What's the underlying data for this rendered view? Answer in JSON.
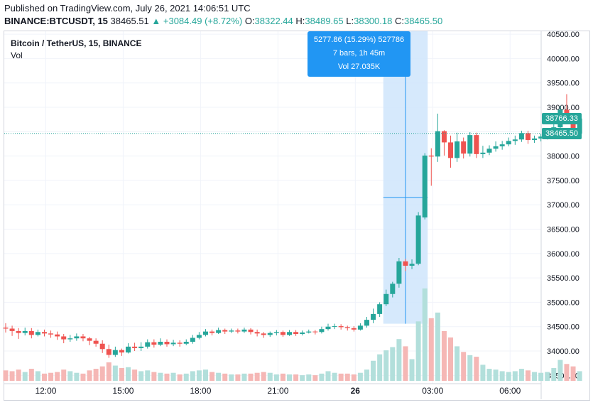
{
  "header": {
    "published": "Published on TradingView.com, July 26, 2021 14:06:51 UTC",
    "symbol": "BINANCE:BTCUSDT, 15",
    "last": "38465.51",
    "change": "▲ +3084.49 (+8.72%)",
    "o_label": "O:",
    "o_value": "38322.44",
    "h_label": "H:",
    "h_value": "38489.65",
    "l_label": "L:",
    "l_value": "38300.18",
    "c_label": "C:",
    "c_value": "38465.50"
  },
  "legend": {
    "title": "Bitcoin / TetherUS, 15, BINANCE",
    "vol_label": "Vol"
  },
  "measure": {
    "line1": "5277.86 (15.29%) 527786",
    "line2": "7 bars, 1h 45m",
    "line3": "Vol 27.035K"
  },
  "price_tags": {
    "current": "38465.50",
    "prev": "38766.33"
  },
  "colors": {
    "up": "#26a69a",
    "down": "#ef5350",
    "up_vol": "#b2dfdb",
    "down_vol": "#f5b7b5",
    "measure": "#2196f3",
    "measure_fill": "#cfe5fb",
    "grid": "#f0f3fa",
    "price_line": "#26a69a"
  },
  "chart_data": {
    "type": "candlestick",
    "title": "Bitcoin / TetherUS, 15, BINANCE",
    "y_ticks": [
      "40500.00",
      "40000.00",
      "39500.00",
      "39000.00",
      "38500.00",
      "38000.00",
      "37500.00",
      "37000.00",
      "36500.00",
      "36000.00",
      "35500.00",
      "35000.00",
      "34500.00",
      "34000.00",
      "33500.00"
    ],
    "x_ticks": [
      "12:00",
      "15:00",
      "18:00",
      "21:00",
      "26",
      "03:00",
      "06:00"
    ],
    "ylim": [
      33330,
      40560
    ],
    "grid": true,
    "candles": [
      [
        34480,
        34460,
        34380,
        34570,
        130
      ],
      [
        34460,
        34410,
        34310,
        34520,
        120
      ],
      [
        34410,
        34370,
        34250,
        34470,
        140
      ],
      [
        34370,
        34410,
        34320,
        34480,
        110
      ],
      [
        34410,
        34330,
        34260,
        34470,
        150
      ],
      [
        34330,
        34390,
        34300,
        34440,
        120
      ],
      [
        34390,
        34360,
        34300,
        34440,
        90
      ],
      [
        34360,
        34340,
        34270,
        34420,
        100
      ],
      [
        34340,
        34300,
        34230,
        34400,
        110
      ],
      [
        34300,
        34240,
        34160,
        34350,
        140
      ],
      [
        34240,
        34260,
        34190,
        34330,
        120
      ],
      [
        34260,
        34300,
        34210,
        34360,
        100
      ],
      [
        34300,
        34260,
        34200,
        34350,
        90
      ],
      [
        34260,
        34210,
        34120,
        34290,
        130
      ],
      [
        34210,
        34150,
        34090,
        34260,
        150
      ],
      [
        34150,
        34040,
        33960,
        34220,
        180
      ],
      [
        34040,
        33920,
        33860,
        34130,
        230
      ],
      [
        33920,
        34020,
        33880,
        34090,
        190
      ],
      [
        34020,
        33970,
        33900,
        34050,
        160
      ],
      [
        33970,
        34090,
        33950,
        34160,
        170
      ],
      [
        34090,
        34060,
        34000,
        34170,
        140
      ],
      [
        34060,
        34090,
        34000,
        34180,
        120
      ],
      [
        34090,
        34180,
        34050,
        34240,
        130
      ],
      [
        34180,
        34130,
        34070,
        34240,
        110
      ],
      [
        34130,
        34190,
        34100,
        34260,
        100
      ],
      [
        34190,
        34140,
        34090,
        34240,
        90
      ],
      [
        34140,
        34170,
        34100,
        34230,
        100
      ],
      [
        34170,
        34150,
        34090,
        34220,
        80
      ],
      [
        34150,
        34190,
        34120,
        34240,
        90
      ],
      [
        34190,
        34270,
        34150,
        34330,
        120
      ],
      [
        34270,
        34330,
        34240,
        34390,
        130
      ],
      [
        34330,
        34400,
        34300,
        34450,
        140
      ],
      [
        34400,
        34370,
        34320,
        34440,
        110
      ],
      [
        34370,
        34430,
        34350,
        34480,
        100
      ],
      [
        34430,
        34400,
        34350,
        34460,
        90
      ],
      [
        34400,
        34420,
        34370,
        34460,
        80
      ],
      [
        34420,
        34400,
        34360,
        34460,
        80
      ],
      [
        34400,
        34440,
        34370,
        34480,
        90
      ],
      [
        34440,
        34390,
        34340,
        34470,
        90
      ],
      [
        34390,
        34360,
        34300,
        34440,
        100
      ],
      [
        34360,
        34330,
        34270,
        34390,
        110
      ],
      [
        34330,
        34370,
        34290,
        34400,
        100
      ],
      [
        34370,
        34390,
        34320,
        34430,
        80
      ],
      [
        34390,
        34330,
        34290,
        34420,
        90
      ],
      [
        34330,
        34390,
        34310,
        34430,
        80
      ],
      [
        34390,
        34350,
        34310,
        34430,
        80
      ],
      [
        34350,
        34380,
        34320,
        34420,
        70
      ],
      [
        34380,
        34400,
        34360,
        34440,
        80
      ],
      [
        34400,
        34390,
        34340,
        34430,
        70
      ],
      [
        34390,
        34450,
        34360,
        34500,
        90
      ],
      [
        34450,
        34500,
        34420,
        34560,
        120
      ],
      [
        34500,
        34510,
        34450,
        34560,
        100
      ],
      [
        34510,
        34490,
        34440,
        34550,
        90
      ],
      [
        34490,
        34470,
        34420,
        34520,
        90
      ],
      [
        34470,
        34440,
        34400,
        34510,
        80
      ],
      [
        34440,
        34520,
        34420,
        34570,
        100
      ],
      [
        34520,
        34640,
        34480,
        34700,
        140
      ],
      [
        34640,
        34760,
        34570,
        34870,
        250
      ],
      [
        34760,
        34960,
        34700,
        35000,
        330
      ],
      [
        34960,
        35170,
        34920,
        35260,
        380
      ],
      [
        35170,
        35380,
        35100,
        35420,
        420
      ],
      [
        35380,
        35840,
        35300,
        35910,
        520
      ],
      [
        35840,
        35750,
        35640,
        35890,
        430
      ],
      [
        35750,
        35790,
        35680,
        35880,
        270
      ],
      [
        35790,
        36780,
        35760,
        36850,
        740
      ],
      [
        36740,
        38010,
        36700,
        38060,
        1150
      ],
      [
        38010,
        37990,
        37390,
        38160,
        780
      ],
      [
        37990,
        38510,
        37880,
        38870,
        850
      ],
      [
        38510,
        38280,
        38010,
        38530,
        620
      ],
      [
        38280,
        37960,
        37760,
        38420,
        540
      ],
      [
        37960,
        38300,
        37880,
        38480,
        430
      ],
      [
        38300,
        38050,
        37950,
        38380,
        360
      ],
      [
        38050,
        38430,
        37990,
        38490,
        320
      ],
      [
        38430,
        38040,
        37960,
        38480,
        300
      ],
      [
        38040,
        38070,
        37960,
        38210,
        200
      ],
      [
        38070,
        38150,
        38020,
        38220,
        150
      ],
      [
        38150,
        38200,
        38090,
        38300,
        140
      ],
      [
        38200,
        38240,
        38130,
        38310,
        120
      ],
      [
        38240,
        38310,
        38200,
        38380,
        110
      ],
      [
        38310,
        38340,
        38230,
        38420,
        120
      ],
      [
        38340,
        38470,
        38290,
        38520,
        150
      ],
      [
        38470,
        38330,
        38250,
        38520,
        130
      ],
      [
        38330,
        38360,
        38270,
        38420,
        110
      ],
      [
        38360,
        38400,
        38300,
        38460,
        100
      ],
      [
        38400,
        38440,
        38340,
        38500,
        110
      ],
      [
        38440,
        38590,
        38400,
        38650,
        160
      ],
      [
        38590,
        38950,
        38520,
        39030,
        260
      ],
      [
        38950,
        38810,
        38700,
        39270,
        210
      ],
      [
        38810,
        38460,
        38390,
        38850,
        180
      ],
      [
        38460,
        38770,
        38450,
        38800,
        120
      ]
    ]
  }
}
